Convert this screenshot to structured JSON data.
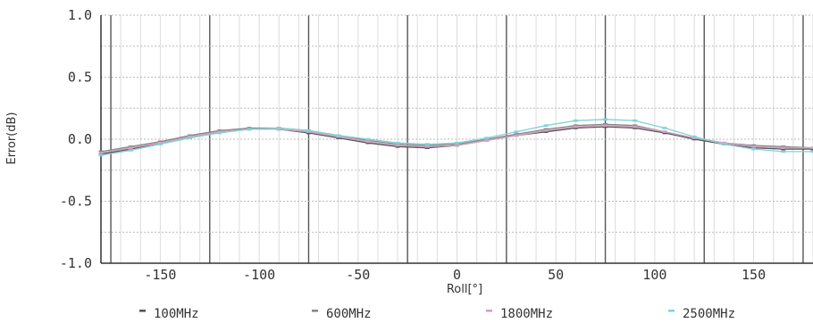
{
  "chart_data": {
    "type": "line",
    "title": "",
    "xlabel": "Roll[°]",
    "ylabel": "Error(dB)",
    "xlim": [
      -180,
      180
    ],
    "ylim": [
      -1.0,
      1.0
    ],
    "xticks": [
      -150,
      -100,
      -50,
      0,
      50,
      100,
      150
    ],
    "yticks": [
      1.0,
      0.5,
      0.0,
      -0.5,
      -1.0
    ],
    "ytick_labels": [
      "1.0",
      "0.5",
      "0.0",
      "-0.5",
      "-1.0"
    ],
    "grid": true,
    "legend_position": "bottom",
    "x": [
      -180,
      -165,
      -150,
      -135,
      -120,
      -105,
      -90,
      -75,
      -60,
      -45,
      -30,
      -15,
      0,
      15,
      30,
      45,
      60,
      75,
      90,
      105,
      120,
      135,
      150,
      165,
      180
    ],
    "series": [
      {
        "name": "100MHz",
        "color": "#555555",
        "values": [
          -0.12,
          -0.08,
          -0.03,
          0.02,
          0.06,
          0.08,
          0.08,
          0.05,
          0.01,
          -0.03,
          -0.06,
          -0.07,
          -0.05,
          -0.01,
          0.03,
          0.06,
          0.09,
          0.1,
          0.09,
          0.05,
          0.0,
          -0.04,
          -0.07,
          -0.08,
          -0.08
        ]
      },
      {
        "name": "600MHz",
        "color": "#888888",
        "values": [
          -0.1,
          -0.06,
          -0.02,
          0.03,
          0.07,
          0.09,
          0.09,
          0.07,
          0.03,
          -0.01,
          -0.04,
          -0.05,
          -0.04,
          0.0,
          0.04,
          0.08,
          0.11,
          0.12,
          0.11,
          0.06,
          0.01,
          -0.03,
          -0.05,
          -0.06,
          -0.07
        ]
      },
      {
        "name": "1800MHz",
        "color": "#d4a0c0",
        "values": [
          -0.11,
          -0.07,
          -0.03,
          0.02,
          0.06,
          0.08,
          0.08,
          0.06,
          0.02,
          -0.02,
          -0.05,
          -0.06,
          -0.05,
          -0.01,
          0.03,
          0.07,
          0.1,
          0.11,
          0.1,
          0.06,
          0.01,
          -0.03,
          -0.06,
          -0.07,
          -0.07
        ]
      },
      {
        "name": "2500MHz",
        "color": "#7fd4d8",
        "values": [
          -0.13,
          -0.09,
          -0.04,
          0.01,
          0.05,
          0.08,
          0.09,
          0.07,
          0.03,
          0.0,
          -0.03,
          -0.04,
          -0.03,
          0.01,
          0.06,
          0.11,
          0.15,
          0.16,
          0.15,
          0.09,
          0.02,
          -0.04,
          -0.08,
          -0.1,
          -0.1
        ]
      }
    ]
  }
}
